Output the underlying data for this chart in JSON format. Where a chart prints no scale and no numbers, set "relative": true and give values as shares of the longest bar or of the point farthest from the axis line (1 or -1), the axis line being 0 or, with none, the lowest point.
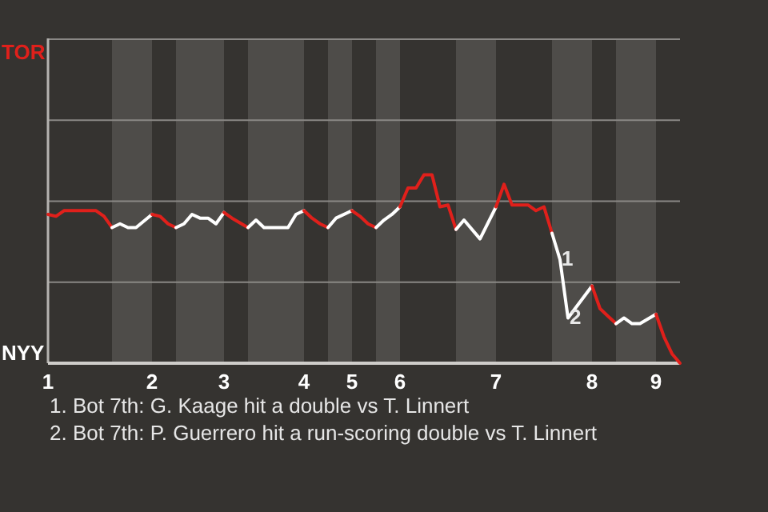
{
  "chart_data": {
    "type": "line",
    "relative": true,
    "categories": [
      "1",
      null,
      null,
      null,
      null,
      null,
      null,
      null,
      null,
      null,
      null,
      null,
      null,
      "2",
      null,
      null,
      null,
      null,
      null,
      null,
      null,
      null,
      "3",
      null,
      null,
      null,
      null,
      null,
      null,
      null,
      null,
      null,
      "4",
      null,
      null,
      null,
      null,
      null,
      "5",
      null,
      null,
      null,
      null,
      null,
      "6",
      null,
      null,
      null,
      null,
      null,
      null,
      null,
      null,
      null,
      null,
      null,
      "7",
      null,
      null,
      null,
      null,
      null,
      null,
      null,
      null,
      null,
      null,
      null,
      "8",
      null,
      null,
      null,
      null,
      null,
      null,
      null,
      "9",
      null,
      null,
      null
    ],
    "series": [
      {
        "color": "#e0201b",
        "values": [
          0.79,
          0.78,
          0.81,
          null,
          null,
          null,
          0.81,
          0.78,
          0.72,
          null,
          null,
          null,
          null,
          null,
          null,
          null,
          null,
          null,
          null,
          null,
          null,
          null,
          null,
          null,
          null,
          null,
          null,
          null,
          null,
          null,
          null,
          null,
          null,
          null,
          null,
          null,
          null,
          null,
          null,
          null,
          null,
          null,
          null,
          null,
          null,
          null,
          null,
          null,
          null,
          null,
          null,
          null,
          null,
          null,
          null,
          null,
          null,
          null,
          null,
          null,
          null,
          null,
          null,
          null,
          null,
          null,
          null,
          null,
          null,
          null,
          null,
          null,
          null,
          null,
          null,
          null,
          null,
          null,
          null,
          null
        ]
      },
      {
        "color": "#ffffff",
        "values": [
          null,
          null,
          null,
          null,
          null,
          null,
          null,
          null,
          0.72,
          0.74,
          0.72,
          0.72,
          null,
          0.79,
          null,
          null,
          null,
          null,
          null,
          null,
          null,
          null,
          null,
          null,
          null,
          null,
          null,
          null,
          null,
          null,
          null,
          null,
          null,
          null,
          null,
          null,
          null,
          null,
          null,
          null,
          null,
          null,
          null,
          null,
          null,
          null,
          null,
          null,
          null,
          null,
          null,
          null,
          null,
          null,
          null,
          null,
          null,
          null,
          null,
          null,
          null,
          null,
          null,
          null,
          null,
          null,
          null,
          null,
          null,
          null,
          null,
          null,
          null,
          null,
          null,
          null,
          null,
          null,
          null,
          null
        ]
      },
      {
        "color": "#e0201b",
        "values": [
          null,
          null,
          null,
          null,
          null,
          null,
          null,
          null,
          null,
          null,
          null,
          null,
          null,
          0.79,
          0.78,
          0.74,
          0.72,
          null,
          null,
          null,
          null,
          null,
          null,
          null,
          null,
          null,
          null,
          null,
          null,
          null,
          null,
          null,
          null,
          null,
          null,
          null,
          null,
          null,
          null,
          null,
          null,
          null,
          null,
          null,
          null,
          null,
          null,
          null,
          null,
          null,
          null,
          null,
          null,
          null,
          null,
          null,
          null,
          null,
          null,
          null,
          null,
          null,
          null,
          null,
          null,
          null,
          null,
          null,
          null,
          null,
          null,
          null,
          null,
          null,
          null,
          null,
          null,
          null,
          null,
          null
        ]
      },
      {
        "color": "#ffffff",
        "values": [
          null,
          null,
          null,
          null,
          null,
          null,
          null,
          null,
          null,
          null,
          null,
          null,
          null,
          null,
          null,
          null,
          0.72,
          0.74,
          0.79,
          0.77,
          0.77,
          0.74,
          0.8,
          null,
          null,
          null,
          null,
          null,
          null,
          null,
          null,
          null,
          null,
          null,
          null,
          null,
          null,
          null,
          null,
          null,
          null,
          null,
          null,
          null,
          null,
          null,
          null,
          null,
          null,
          null,
          null,
          null,
          null,
          null,
          null,
          null,
          null,
          null,
          null,
          null,
          null,
          null,
          null,
          null,
          null,
          null,
          null,
          null,
          null,
          null,
          null,
          null,
          null,
          null,
          null,
          null,
          null,
          null,
          null,
          null
        ]
      },
      {
        "color": "#e0201b",
        "values": [
          null,
          null,
          null,
          null,
          null,
          null,
          null,
          null,
          null,
          null,
          null,
          null,
          null,
          null,
          null,
          null,
          null,
          null,
          null,
          null,
          null,
          null,
          0.8,
          0.77,
          null,
          0.72,
          null,
          null,
          null,
          null,
          null,
          null,
          null,
          null,
          null,
          null,
          null,
          null,
          null,
          null,
          null,
          null,
          null,
          null,
          null,
          null,
          null,
          null,
          null,
          null,
          null,
          null,
          null,
          null,
          null,
          null,
          null,
          null,
          null,
          null,
          null,
          null,
          null,
          null,
          null,
          null,
          null,
          null,
          null,
          null,
          null,
          null,
          null,
          null,
          null,
          null,
          null,
          null,
          null,
          null
        ]
      },
      {
        "color": "#ffffff",
        "values": [
          null,
          null,
          null,
          null,
          null,
          null,
          null,
          null,
          null,
          null,
          null,
          null,
          null,
          null,
          null,
          null,
          null,
          null,
          null,
          null,
          null,
          null,
          null,
          null,
          null,
          0.72,
          0.76,
          0.72,
          null,
          null,
          0.72,
          0.79,
          0.81,
          null,
          null,
          null,
          null,
          null,
          null,
          null,
          null,
          null,
          null,
          null,
          null,
          null,
          null,
          null,
          null,
          null,
          null,
          null,
          null,
          null,
          null,
          null,
          null,
          null,
          null,
          null,
          null,
          null,
          null,
          null,
          null,
          null,
          null,
          null,
          null,
          null,
          null,
          null,
          null,
          null,
          null,
          null,
          null,
          null,
          null,
          null
        ]
      },
      {
        "color": "#e0201b",
        "values": [
          null,
          null,
          null,
          null,
          null,
          null,
          null,
          null,
          null,
          null,
          null,
          null,
          null,
          null,
          null,
          null,
          null,
          null,
          null,
          null,
          null,
          null,
          null,
          null,
          null,
          null,
          null,
          null,
          null,
          null,
          null,
          null,
          0.81,
          0.77,
          0.74,
          0.72,
          null,
          null,
          null,
          null,
          null,
          null,
          null,
          null,
          null,
          null,
          null,
          null,
          null,
          null,
          null,
          null,
          null,
          null,
          null,
          null,
          null,
          null,
          null,
          null,
          null,
          null,
          null,
          null,
          null,
          null,
          null,
          null,
          null,
          null,
          null,
          null,
          null,
          null,
          null,
          null,
          null,
          null,
          null,
          null
        ]
      },
      {
        "color": "#ffffff",
        "values": [
          null,
          null,
          null,
          null,
          null,
          null,
          null,
          null,
          null,
          null,
          null,
          null,
          null,
          null,
          null,
          null,
          null,
          null,
          null,
          null,
          null,
          null,
          null,
          null,
          null,
          null,
          null,
          null,
          null,
          null,
          null,
          null,
          null,
          null,
          null,
          0.72,
          0.77,
          null,
          0.81,
          null,
          null,
          null,
          null,
          null,
          null,
          null,
          null,
          null,
          null,
          null,
          null,
          null,
          null,
          null,
          null,
          null,
          null,
          null,
          null,
          null,
          null,
          null,
          null,
          null,
          null,
          null,
          null,
          null,
          null,
          null,
          null,
          null,
          null,
          null,
          null,
          null,
          null,
          null,
          null,
          null
        ]
      },
      {
        "color": "#e0201b",
        "values": [
          null,
          null,
          null,
          null,
          null,
          null,
          null,
          null,
          null,
          null,
          null,
          null,
          null,
          null,
          null,
          null,
          null,
          null,
          null,
          null,
          null,
          null,
          null,
          null,
          null,
          null,
          null,
          null,
          null,
          null,
          null,
          null,
          null,
          null,
          null,
          null,
          null,
          null,
          0.81,
          0.78,
          0.74,
          0.72,
          null,
          null,
          null,
          null,
          null,
          null,
          null,
          null,
          null,
          null,
          null,
          null,
          null,
          null,
          null,
          null,
          null,
          null,
          null,
          null,
          null,
          null,
          null,
          null,
          null,
          null,
          null,
          null,
          null,
          null,
          null,
          null,
          null,
          null,
          null,
          null,
          null,
          null
        ]
      },
      {
        "color": "#ffffff",
        "values": [
          null,
          null,
          null,
          null,
          null,
          null,
          null,
          null,
          null,
          null,
          null,
          null,
          null,
          null,
          null,
          null,
          null,
          null,
          null,
          null,
          null,
          null,
          null,
          null,
          null,
          null,
          null,
          null,
          null,
          null,
          null,
          null,
          null,
          null,
          null,
          null,
          null,
          null,
          null,
          null,
          null,
          0.72,
          0.76,
          0.79,
          0.83,
          null,
          null,
          null,
          null,
          null,
          null,
          null,
          null,
          null,
          null,
          null,
          null,
          null,
          null,
          null,
          null,
          null,
          null,
          null,
          null,
          null,
          null,
          null,
          null,
          null,
          null,
          null,
          null,
          null,
          null,
          null,
          null,
          null,
          null,
          null
        ]
      },
      {
        "color": "#e0201b",
        "values": [
          null,
          null,
          null,
          null,
          null,
          null,
          null,
          null,
          null,
          null,
          null,
          null,
          null,
          null,
          null,
          null,
          null,
          null,
          null,
          null,
          null,
          null,
          null,
          null,
          null,
          null,
          null,
          null,
          null,
          null,
          null,
          null,
          null,
          null,
          null,
          null,
          null,
          null,
          null,
          null,
          null,
          null,
          null,
          null,
          0.83,
          0.93,
          0.93,
          1,
          1,
          0.83,
          0.84,
          0.71,
          null,
          null,
          null,
          null,
          null,
          null,
          null,
          null,
          null,
          null,
          null,
          null,
          null,
          null,
          null,
          null,
          null,
          null,
          null,
          null,
          null,
          null,
          null,
          null,
          null,
          null,
          null,
          null
        ]
      },
      {
        "color": "#ffffff",
        "values": [
          null,
          null,
          null,
          null,
          null,
          null,
          null,
          null,
          null,
          null,
          null,
          null,
          null,
          null,
          null,
          null,
          null,
          null,
          null,
          null,
          null,
          null,
          null,
          null,
          null,
          null,
          null,
          null,
          null,
          null,
          null,
          null,
          null,
          null,
          null,
          null,
          null,
          null,
          null,
          null,
          null,
          null,
          null,
          null,
          null,
          null,
          null,
          null,
          null,
          null,
          null,
          0.71,
          0.76,
          null,
          0.66,
          null,
          0.83,
          null,
          null,
          null,
          null,
          null,
          null,
          null,
          null,
          null,
          null,
          null,
          null,
          null,
          null,
          null,
          null,
          null,
          null,
          null,
          null,
          null,
          null,
          null
        ]
      },
      {
        "color": "#e0201b",
        "values": [
          null,
          null,
          null,
          null,
          null,
          null,
          null,
          null,
          null,
          null,
          null,
          null,
          null,
          null,
          null,
          null,
          null,
          null,
          null,
          null,
          null,
          null,
          null,
          null,
          null,
          null,
          null,
          null,
          null,
          null,
          null,
          null,
          null,
          null,
          null,
          null,
          null,
          null,
          null,
          null,
          null,
          null,
          null,
          null,
          null,
          null,
          null,
          null,
          null,
          null,
          null,
          null,
          null,
          null,
          null,
          null,
          0.83,
          0.95,
          0.84,
          null,
          0.84,
          0.81,
          0.83,
          0.69,
          null,
          null,
          null,
          null,
          null,
          null,
          null,
          null,
          null,
          null,
          null,
          null,
          null,
          null,
          null,
          null
        ]
      },
      {
        "color": "#ffffff",
        "values": [
          null,
          null,
          null,
          null,
          null,
          null,
          null,
          null,
          null,
          null,
          null,
          null,
          null,
          null,
          null,
          null,
          null,
          null,
          null,
          null,
          null,
          null,
          null,
          null,
          null,
          null,
          null,
          null,
          null,
          null,
          null,
          null,
          null,
          null,
          null,
          null,
          null,
          null,
          null,
          null,
          null,
          null,
          null,
          null,
          null,
          null,
          null,
          null,
          null,
          null,
          null,
          null,
          null,
          null,
          null,
          null,
          null,
          null,
          null,
          null,
          null,
          null,
          null,
          0.69,
          0.55,
          0.24,
          null,
          null,
          0.41,
          null,
          null,
          null,
          null,
          null,
          null,
          null,
          null,
          null,
          null,
          null
        ]
      },
      {
        "color": "#e0201b",
        "values": [
          null,
          null,
          null,
          null,
          null,
          null,
          null,
          null,
          null,
          null,
          null,
          null,
          null,
          null,
          null,
          null,
          null,
          null,
          null,
          null,
          null,
          null,
          null,
          null,
          null,
          null,
          null,
          null,
          null,
          null,
          null,
          null,
          null,
          null,
          null,
          null,
          null,
          null,
          null,
          null,
          null,
          null,
          null,
          null,
          null,
          null,
          null,
          null,
          null,
          null,
          null,
          null,
          null,
          null,
          null,
          null,
          null,
          null,
          null,
          null,
          null,
          null,
          null,
          null,
          null,
          null,
          null,
          null,
          0.41,
          0.29,
          null,
          0.21,
          null,
          null,
          null,
          null,
          null,
          null,
          null,
          null
        ]
      },
      {
        "color": "#ffffff",
        "values": [
          null,
          null,
          null,
          null,
          null,
          null,
          null,
          null,
          null,
          null,
          null,
          null,
          null,
          null,
          null,
          null,
          null,
          null,
          null,
          null,
          null,
          null,
          null,
          null,
          null,
          null,
          null,
          null,
          null,
          null,
          null,
          null,
          null,
          null,
          null,
          null,
          null,
          null,
          null,
          null,
          null,
          null,
          null,
          null,
          null,
          null,
          null,
          null,
          null,
          null,
          null,
          null,
          null,
          null,
          null,
          null,
          null,
          null,
          null,
          null,
          null,
          null,
          null,
          null,
          null,
          null,
          null,
          null,
          null,
          null,
          null,
          0.21,
          0.24,
          0.21,
          0.21,
          null,
          0.26,
          null,
          null,
          null
        ]
      },
      {
        "color": "#e0201b",
        "values": [
          null,
          null,
          null,
          null,
          null,
          null,
          null,
          null,
          null,
          null,
          null,
          null,
          null,
          null,
          null,
          null,
          null,
          null,
          null,
          null,
          null,
          null,
          null,
          null,
          null,
          null,
          null,
          null,
          null,
          null,
          null,
          null,
          null,
          null,
          null,
          null,
          null,
          null,
          null,
          null,
          null,
          null,
          null,
          null,
          null,
          null,
          null,
          null,
          null,
          null,
          null,
          null,
          null,
          null,
          null,
          null,
          null,
          null,
          null,
          null,
          null,
          null,
          null,
          null,
          null,
          null,
          null,
          null,
          null,
          null,
          null,
          null,
          null,
          null,
          null,
          null,
          0.26,
          0.14,
          0.05,
          0
        ]
      }
    ],
    "ref_lines": [
      {
        "axis": "y",
        "value": 0.43,
        "color": "#8a8885"
      },
      {
        "axis": "y",
        "value": 0.86,
        "color": "#8a8885"
      },
      {
        "axis": "y",
        "value": 1.29,
        "color": "#8a8885"
      },
      {
        "axis": "y",
        "value": 1.72,
        "color": "#8a8885"
      }
    ],
    "marker": "none",
    "line_style": "solid",
    "annotations": [
      "TOR",
      "NYY",
      {
        "text": "1",
        "y": 0.55
      },
      {
        "text": "2",
        "y": 0.24
      },
      "1. Bot 7th: G. Kaage hit a double vs T. Linnert",
      "2. Bot 7th: P. Guerrero hit a run-scoring double vs T. Linnert"
    ]
  }
}
